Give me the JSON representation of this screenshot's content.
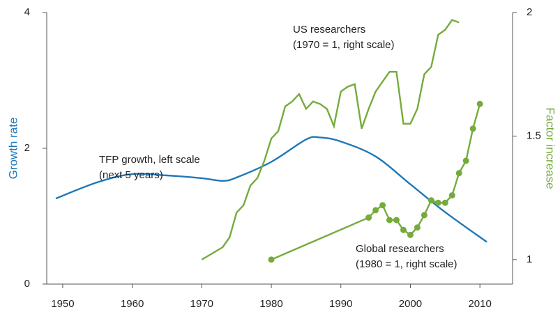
{
  "chart_data": {
    "type": "line",
    "y_label": "Growth rate",
    "y2_label": "Factor increase",
    "xlim": [
      1947.7,
      2014.7
    ],
    "xticks": [
      1950,
      1960,
      1970,
      1980,
      1990,
      2000,
      2010
    ],
    "ylim": [
      0,
      4
    ],
    "yticks": [
      0,
      2,
      4
    ],
    "y2lim": [
      0.901,
      2.0
    ],
    "y2ticks": [
      1,
      1.5,
      2
    ],
    "series": [
      {
        "name": "TFP growth, left scale",
        "note": "(next 5 years)",
        "color": "#1f78b8",
        "axis": "y",
        "markers": false,
        "x": [
          1949,
          1955,
          1960,
          1965,
          1970,
          1973,
          1975,
          1980,
          1985,
          1987,
          1990,
          1995,
          2000,
          2005,
          2011
        ],
        "values": [
          1.26,
          1.5,
          1.62,
          1.6,
          1.56,
          1.52,
          1.57,
          1.8,
          2.13,
          2.16,
          2.1,
          1.88,
          1.47,
          1.06,
          0.62
        ]
      },
      {
        "name": "US researchers",
        "note": "(1970 = 1, right scale)",
        "color": "#76ab3c",
        "axis": "y2",
        "markers": false,
        "x": [
          1970,
          1973,
          1974,
          1975,
          1976,
          1977,
          1978,
          1979,
          1980,
          1981,
          1982,
          1983,
          1984,
          1985,
          1986,
          1987,
          1988,
          1989,
          1990,
          1991,
          1992,
          1993,
          1994,
          1995,
          1996,
          1997,
          1998,
          1999,
          2000,
          2001,
          2002,
          2003,
          2004,
          2005,
          2006,
          2007
        ],
        "values": [
          1.0,
          1.05,
          1.09,
          1.19,
          1.22,
          1.3,
          1.33,
          1.4,
          1.49,
          1.52,
          1.62,
          1.64,
          1.67,
          1.61,
          1.64,
          1.63,
          1.61,
          1.54,
          1.68,
          1.7,
          1.71,
          1.53,
          1.61,
          1.68,
          1.72,
          1.76,
          1.76,
          1.55,
          1.55,
          1.61,
          1.75,
          1.78,
          1.91,
          1.93,
          1.97,
          1.96
        ]
      },
      {
        "name": "Global researchers",
        "note": "(1980 = 1, right scale)",
        "color": "#76ab3c",
        "axis": "y2",
        "markers": true,
        "x": [
          1980,
          1994,
          1995,
          1996,
          1997,
          1998,
          1999,
          2000,
          2001,
          2002,
          2003,
          2004,
          2005,
          2006,
          2007,
          2008,
          2009,
          2010
        ],
        "values": [
          1.0,
          1.17,
          1.2,
          1.22,
          1.16,
          1.16,
          1.12,
          1.1,
          1.13,
          1.18,
          1.24,
          1.23,
          1.23,
          1.26,
          1.35,
          1.4,
          1.53,
          1.63
        ]
      }
    ]
  }
}
